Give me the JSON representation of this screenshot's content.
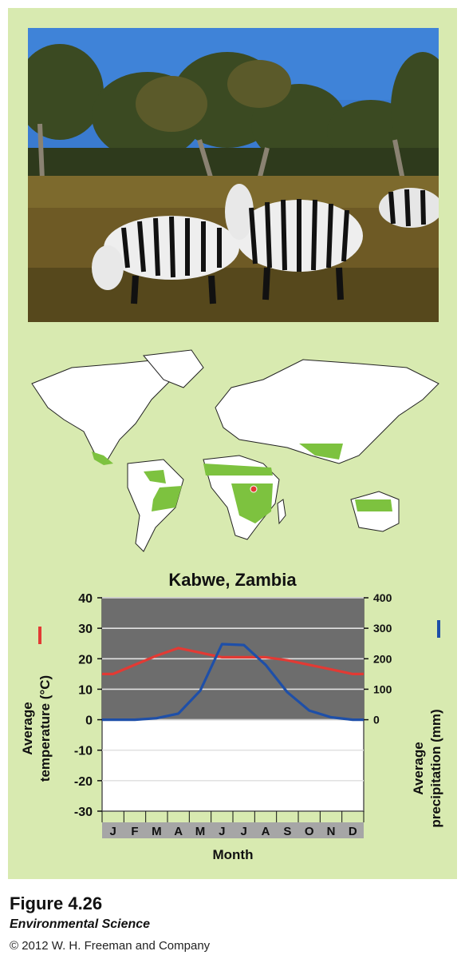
{
  "figure": {
    "number": "Figure 4.26",
    "book": "Environmental Science",
    "copyright": "© 2012 W. H. Freeman and Company"
  },
  "colors": {
    "panel": "#d8eab0",
    "savanna": "#7dc23f",
    "temperature": "#e23a34",
    "precipitation": "#1e4fa8",
    "growing_season": "#6d6d6d"
  },
  "chart_data": {
    "type": "line",
    "title": "Kabwe, Zambia",
    "xlabel": "Month",
    "categories": [
      "J",
      "F",
      "M",
      "A",
      "M",
      "J",
      "J",
      "A",
      "S",
      "O",
      "N",
      "D"
    ],
    "y_left": {
      "label_lines": [
        "Average",
        "temperature (°C)"
      ],
      "ylim": [
        -30,
        40
      ],
      "ticks": [
        "40",
        "30",
        "20",
        "10",
        "0",
        "-10",
        "-20",
        "-30"
      ]
    },
    "y_right": {
      "label_lines": [
        "Average",
        "precipitation (mm)"
      ],
      "ylim": [
        0,
        400
      ],
      "ticks": [
        "400",
        "300",
        "200",
        "100",
        "0"
      ]
    },
    "series": [
      {
        "name": "Average temperature",
        "axis": "left",
        "color": "#e23a34",
        "values": [
          15,
          18,
          21,
          23.5,
          22,
          20.5,
          20.5,
          20.5,
          19.5,
          18,
          16.5,
          15
        ]
      },
      {
        "name": "Average precipitation",
        "axis": "right",
        "color": "#1e4fa8",
        "values": [
          0,
          0,
          5,
          20,
          95,
          248,
          245,
          180,
          90,
          30,
          8,
          0
        ]
      }
    ],
    "grid": true
  }
}
